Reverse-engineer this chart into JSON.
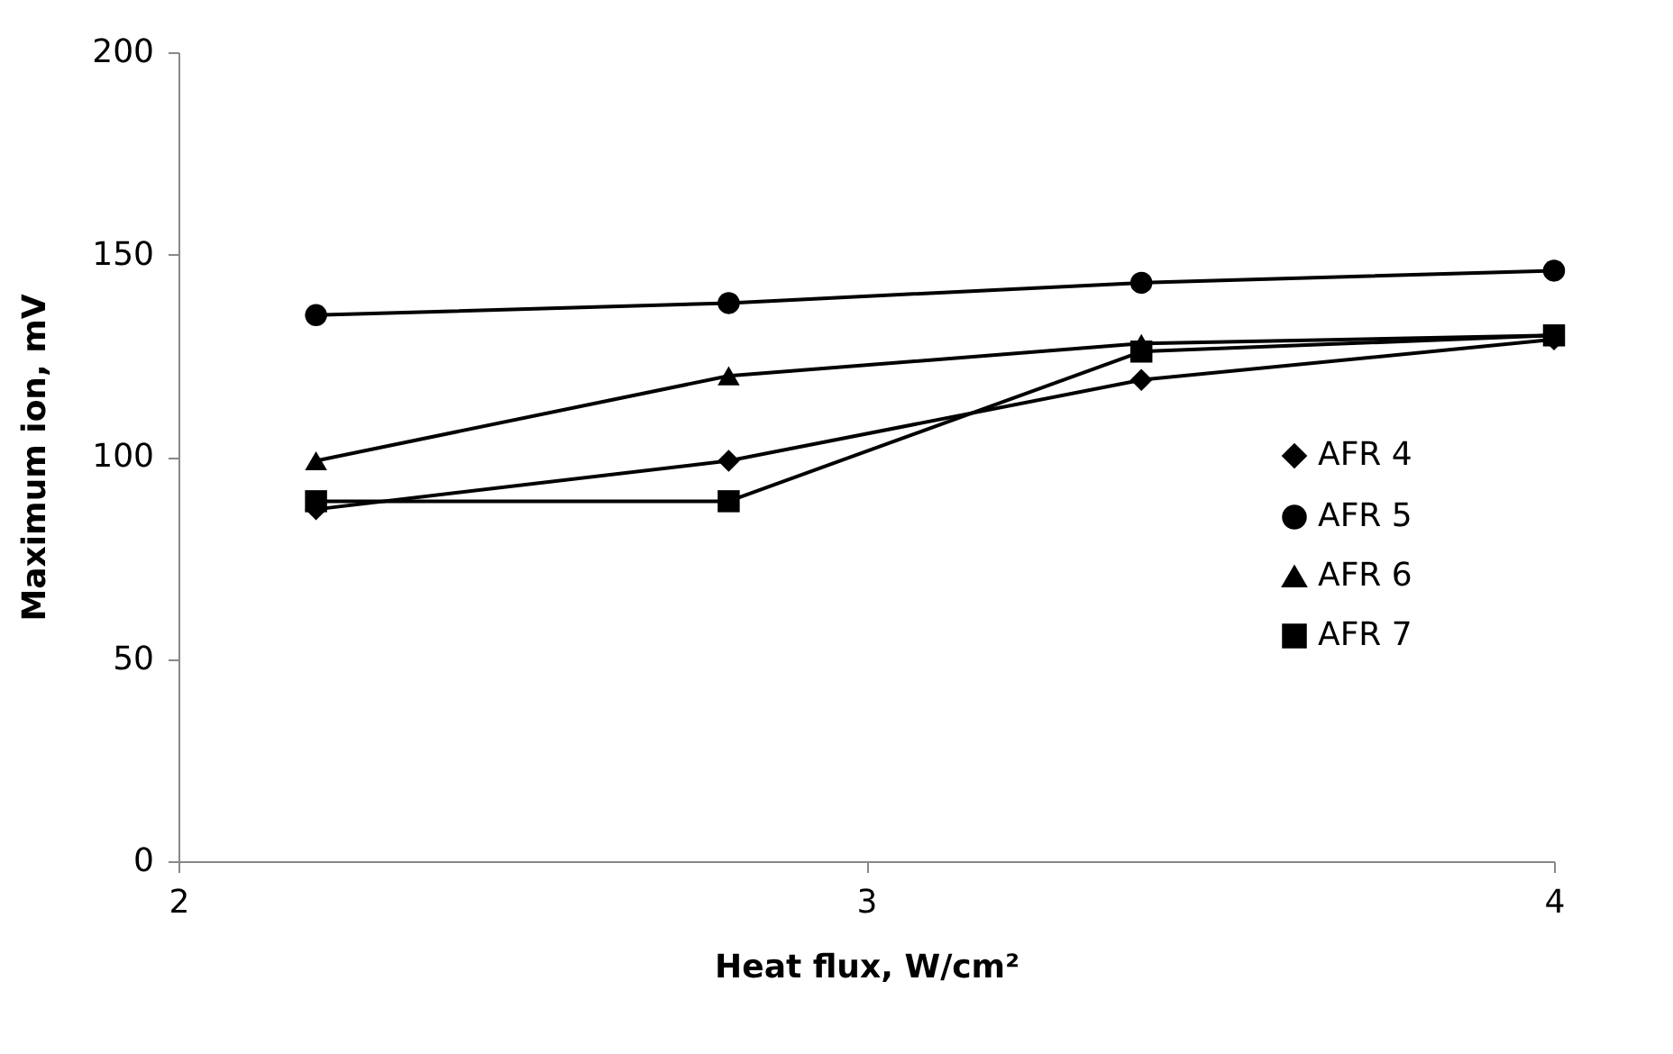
{
  "chart_data": {
    "type": "line",
    "xlabel": "Heat flux, W/cm²",
    "ylabel": "Maximum ion, mV",
    "x": [
      2.2,
      2.8,
      3.4,
      4
    ],
    "series": [
      {
        "name": "AFR 4",
        "color": "#000000",
        "marker": "diamond",
        "values": [
          87,
          99,
          119,
          129
        ]
      },
      {
        "name": "AFR 5",
        "color": "#000000",
        "marker": "circle",
        "values": [
          135,
          138,
          143,
          146
        ]
      },
      {
        "name": "AFR 6",
        "color": "#000000",
        "marker": "triangle",
        "values": [
          99,
          120,
          128,
          130
        ]
      },
      {
        "name": "AFR 7",
        "color": "#000000",
        "marker": "square",
        "values": [
          89,
          89,
          126,
          130
        ]
      }
    ],
    "xlim": [
      2,
      4
    ],
    "xticks": [
      2,
      3,
      4
    ],
    "ylim": [
      0,
      200
    ],
    "yticks": [
      0,
      50,
      100,
      150,
      200
    ],
    "grid": false,
    "legend": "right",
    "line_style": "solid"
  }
}
